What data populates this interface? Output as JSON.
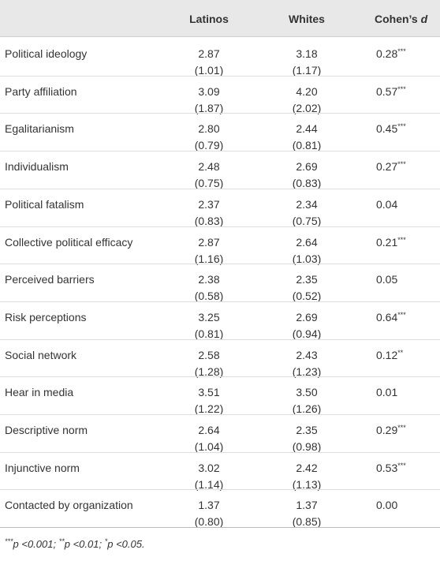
{
  "header": {
    "latinos": "Latinos",
    "whites": "Whites",
    "cohen": "Cohen’s",
    "cohen_var": "d"
  },
  "rows": [
    {
      "label": "Political ideology",
      "latinos": "2.87",
      "latinos_sd": "(1.01)",
      "whites": "3.18",
      "whites_sd": "(1.17)",
      "d": "0.28",
      "sig": "***"
    },
    {
      "label": "Party affiliation",
      "latinos": "3.09",
      "latinos_sd": "(1.87)",
      "whites": "4.20",
      "whites_sd": "(2.02)",
      "d": "0.57",
      "sig": "***"
    },
    {
      "label": "Egalitarianism",
      "latinos": "2.80",
      "latinos_sd": "(0.79)",
      "whites": "2.44",
      "whites_sd": "(0.81)",
      "d": "0.45",
      "sig": "***"
    },
    {
      "label": "Individualism",
      "latinos": "2.48",
      "latinos_sd": "(0.75)",
      "whites": "2.69",
      "whites_sd": "(0.83)",
      "d": "0.27",
      "sig": "***"
    },
    {
      "label": "Political fatalism",
      "latinos": "2.37",
      "latinos_sd": "(0.83)",
      "whites": "2.34",
      "whites_sd": "(0.75)",
      "d": "0.04"
    },
    {
      "label": "Collective political efficacy",
      "latinos": "2.87",
      "latinos_sd": "(1.16)",
      "whites": "2.64",
      "whites_sd": "(1.03)",
      "d": "0.21",
      "sig": "***"
    },
    {
      "label": "Perceived barriers",
      "latinos": "2.38",
      "latinos_sd": "(0.58)",
      "whites": "2.35",
      "whites_sd": "(0.52)",
      "d": "0.05"
    },
    {
      "label": "Risk perceptions",
      "latinos": "3.25",
      "latinos_sd": "(0.81)",
      "whites": "2.69",
      "whites_sd": "(0.94)",
      "d": "0.64",
      "sig": "***"
    },
    {
      "label": "Social network",
      "latinos": "2.58",
      "latinos_sd": "(1.28)",
      "whites": "2.43",
      "whites_sd": "(1.23)",
      "d": "0.12",
      "sig": "**"
    },
    {
      "label": "Hear in media",
      "latinos": "3.51",
      "latinos_sd": "(1.22)",
      "whites": "3.50",
      "whites_sd": "(1.26)",
      "d": "0.01"
    },
    {
      "label": "Descriptive norm",
      "latinos": "2.64",
      "latinos_sd": "(1.04)",
      "whites": "2.35",
      "whites_sd": "(0.98)",
      "d": "0.29",
      "sig": "***"
    },
    {
      "label": "Injunctive norm",
      "latinos": "3.02",
      "latinos_sd": "(1.14)",
      "whites": "2.42",
      "whites_sd": "(1.13)",
      "d": "0.53",
      "sig": "***"
    },
    {
      "label": "Contacted by organization",
      "latinos": "1.37",
      "latinos_sd": "(0.80)",
      "whites": "1.37",
      "whites_sd": "(0.85)",
      "d": "0.00"
    }
  ],
  "footnote": [
    {
      "mark": "***",
      "text": "p <0.001;"
    },
    {
      "mark": "**",
      "text": "p <0.01;"
    },
    {
      "mark": "*",
      "text": "p <0.05."
    }
  ]
}
